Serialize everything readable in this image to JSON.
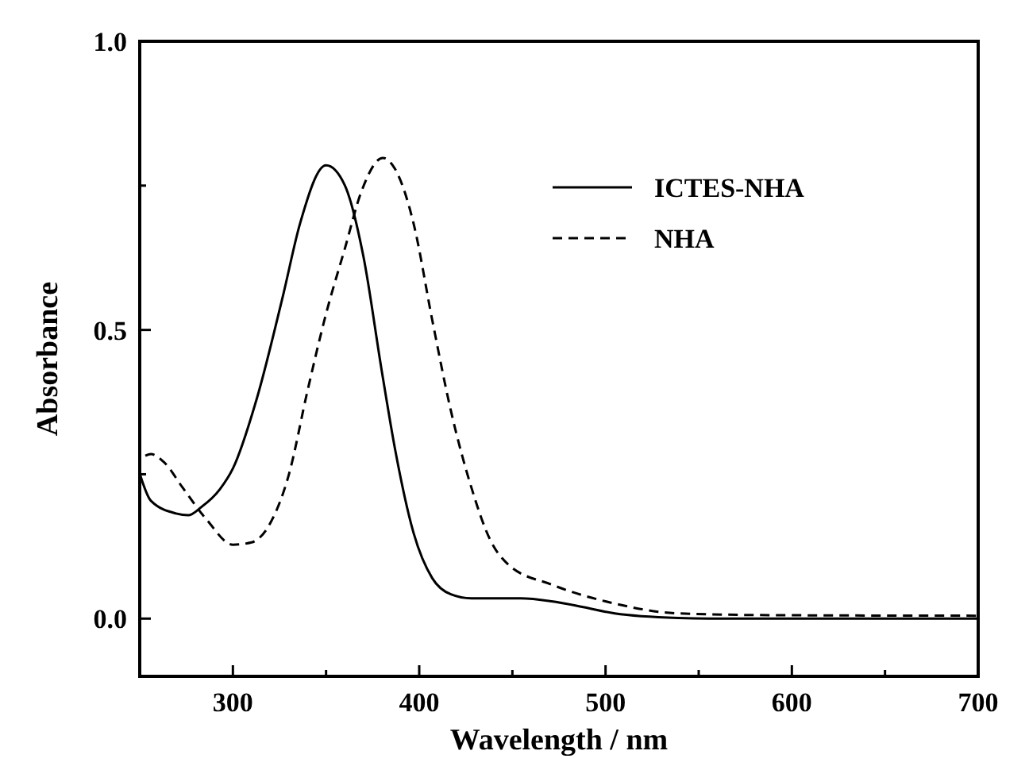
{
  "chart_data": {
    "type": "line",
    "xlabel": "Wavelength / nm",
    "ylabel": "Absorbance",
    "xlim": [
      250,
      700
    ],
    "ylim": [
      -0.1,
      1.0
    ],
    "xticks": [
      300,
      {
        "value": 350,
        "label": null
      },
      400,
      {
        "value": 450,
        "label": null
      },
      500,
      {
        "value": 550,
        "label": null
      },
      600,
      {
        "value": 650,
        "label": null
      },
      700
    ],
    "yticks": [
      {
        "value": 0,
        "label": "0.0"
      },
      {
        "value": 0.25,
        "label": null
      },
      0.5,
      {
        "value": 0.75,
        "label": null
      },
      {
        "value": 1,
        "label": "1.0"
      }
    ],
    "legend": "top right",
    "grid": false,
    "marker": "none",
    "series": [
      {
        "name": "ICTES-NHA",
        "color": "#000000",
        "line_style": "solid",
        "x": [
          250,
          256,
          269.5,
          276,
          283,
          293,
          300,
          313,
          327,
          336,
          350,
          360,
          370,
          380,
          387,
          397,
          407,
          417,
          428,
          454.5,
          471,
          488,
          505,
          539,
          555,
          700
        ],
        "values": [
          0.251,
          0.204,
          0.182,
          0.179,
          0.193,
          0.224,
          0.26,
          0.383,
          0.561,
          0.684,
          0.785,
          0.751,
          0.628,
          0.427,
          0.294,
          0.148,
          0.07,
          0.042,
          0.035,
          0.035,
          0.03,
          0.02,
          0.009,
          0.001,
          0,
          0
        ]
      },
      {
        "name": "NHA",
        "color": "#000000",
        "line_style": "dashed",
        "x": [
          253,
          256,
          263,
          273,
          286,
          300,
          310,
          320,
          330,
          340,
          350,
          360,
          369,
          380.5,
          387,
          397,
          407,
          417,
          428,
          438,
          448,
          471,
          505,
          539,
          589,
          700
        ],
        "values": [
          0.282,
          0.285,
          0.271,
          0.227,
          0.171,
          0.128,
          0.132,
          0.165,
          0.249,
          0.394,
          0.528,
          0.64,
          0.74,
          0.798,
          0.779,
          0.684,
          0.517,
          0.36,
          0.227,
          0.137,
          0.093,
          0.059,
          0.026,
          0.009,
          0.006,
          0.005
        ]
      }
    ]
  }
}
